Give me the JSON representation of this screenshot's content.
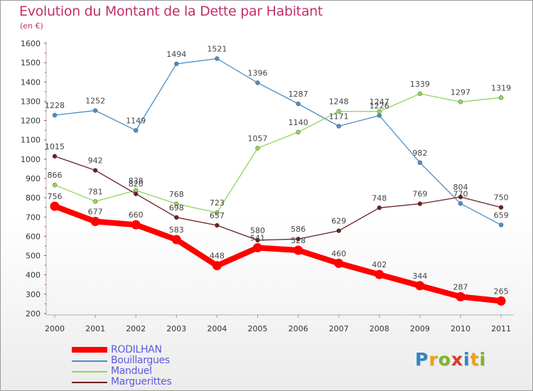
{
  "header": {
    "title": "Evolution du Montant de la Dette par Habitant",
    "unit": "(en €)"
  },
  "logo": {
    "text": "Proxiti",
    "letter_colors": [
      "#2f87c8",
      "#e8a21d",
      "#7fb32a",
      "#d83b2f",
      "#2f87c8",
      "#e8a21d",
      "#7fb32a"
    ]
  },
  "colors": {
    "title": "#c0306a",
    "axis_tick": "#d9342b"
  },
  "chart_data": {
    "type": "line",
    "title": "Evolution du Montant de la Dette par Habitant",
    "subtitle": "(en €)",
    "xlabel": "",
    "ylabel": "",
    "x": [
      "2000",
      "2001",
      "2002",
      "2003",
      "2004",
      "2005",
      "2006",
      "2007",
      "2008",
      "2009",
      "2010",
      "2011"
    ],
    "ylim": [
      200,
      1600
    ],
    "yticks": [
      200,
      300,
      400,
      500,
      600,
      700,
      800,
      900,
      1000,
      1100,
      1200,
      1300,
      1400,
      1500,
      1600
    ],
    "grid": false,
    "legend_position": "bottom-left",
    "series": [
      {
        "name": "RODILHAN",
        "color": "#ff0000",
        "values": [
          756,
          677,
          660,
          583,
          448,
          541,
          528,
          460,
          402,
          344,
          287,
          265
        ],
        "labels": [
          "756",
          "677",
          "660",
          "583",
          "448",
          "541",
          "528",
          "460",
          "402",
          "344",
          "287",
          "265"
        ]
      },
      {
        "name": "Bouillargues",
        "color": "#4a8fc7",
        "values": [
          1228,
          1252,
          1149,
          1494,
          1521,
          1396,
          1287,
          1171,
          1226,
          982,
          770,
          659
        ],
        "labels": [
          "1228",
          "1252",
          "1149",
          "1494",
          "1521",
          "1396",
          "1287",
          "1171",
          "1226",
          "982",
          "770",
          "659"
        ]
      },
      {
        "name": "Manduel",
        "color": "#8fd65a",
        "values": [
          866,
          781,
          838,
          768,
          723,
          1057,
          1140,
          1248,
          1247,
          1339,
          1297,
          1319
        ],
        "labels": [
          "866",
          "781",
          "838",
          "768",
          "723",
          "1057",
          "1140",
          "1248",
          "1247",
          "1339",
          "1297",
          "1319"
        ]
      },
      {
        "name": "Marguerittes",
        "color": "#6b1f22",
        "values": [
          1015,
          942,
          820,
          698,
          657,
          580,
          586,
          629,
          748,
          769,
          804,
          750
        ],
        "labels": [
          "1015",
          "942",
          "820",
          "698",
          "657",
          "580",
          "586",
          "629",
          "748",
          "769",
          "804",
          "750"
        ]
      }
    ]
  }
}
